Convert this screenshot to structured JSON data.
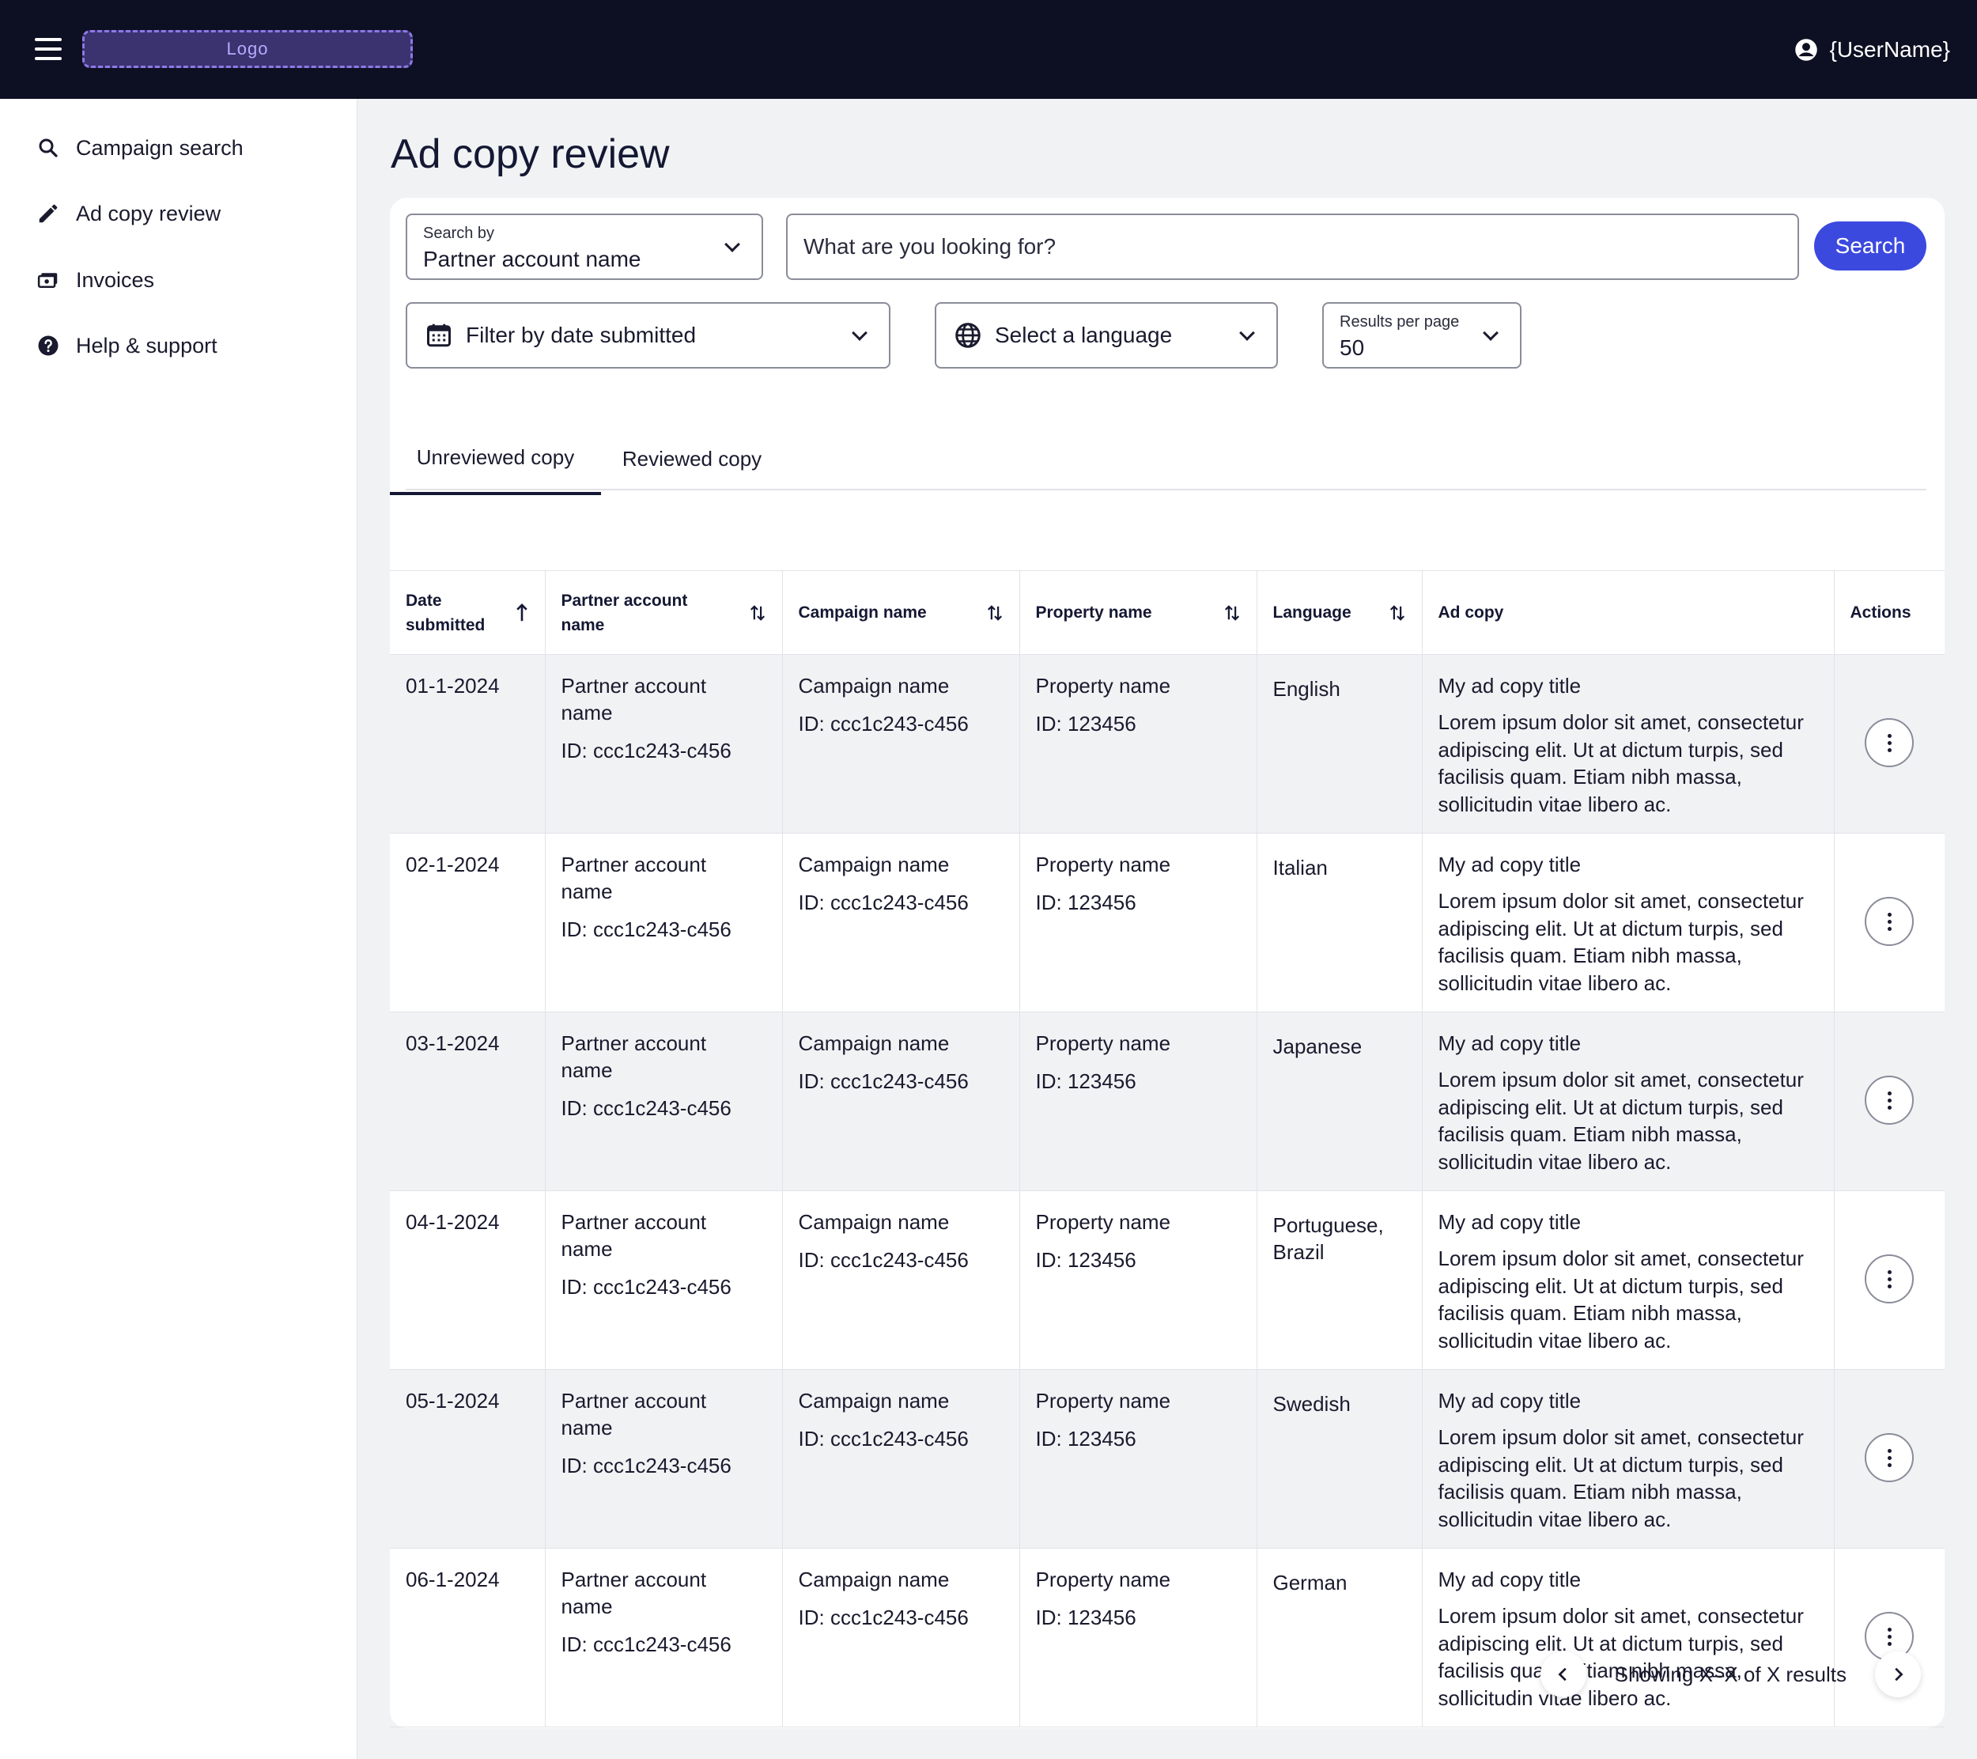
{
  "header": {
    "logo_text": "Logo",
    "user_name": "{UserName}"
  },
  "sidebar": {
    "items": [
      {
        "label": "Campaign search",
        "icon": "search-icon"
      },
      {
        "label": "Ad copy review",
        "icon": "pencil-icon"
      },
      {
        "label": "Invoices",
        "icon": "invoice-icon"
      },
      {
        "label": "Help & support",
        "icon": "help-icon"
      }
    ]
  },
  "page": {
    "title": "Ad copy review"
  },
  "filters": {
    "search_by_label": "Search by",
    "search_by_value": "Partner account name",
    "search_placeholder": "What are you looking for?",
    "search_button": "Search",
    "date_filter": "Filter by date submitted",
    "language_filter": "Select a language",
    "results_label": "Results per page",
    "results_value": "50"
  },
  "tabs": [
    {
      "label": "Unreviewed copy",
      "active": true
    },
    {
      "label": "Reviewed copy",
      "active": false
    }
  ],
  "table": {
    "headers": {
      "date": "Date submitted",
      "partner": "Partner account name",
      "campaign": "Campaign name",
      "property": "Property name",
      "language": "Language",
      "adcopy": "Ad copy",
      "actions": "Actions"
    },
    "rows": [
      {
        "date": "01-1-2024",
        "partner": "Partner account name",
        "partner_id": "ID: ccc1c243-c456",
        "campaign": "Campaign name",
        "campaign_id": "ID: ccc1c243-c456",
        "property": "Property name",
        "property_id": "ID: 123456",
        "language": "English",
        "ad_title": "My ad copy title",
        "ad_body": "Lorem ipsum dolor sit amet, consectetur adipiscing elit. Ut at dictum turpis, sed facilisis quam. Etiam nibh massa, sollicitudin vitae libero ac."
      },
      {
        "date": "02-1-2024",
        "partner": "Partner account name",
        "partner_id": "ID: ccc1c243-c456",
        "campaign": "Campaign name",
        "campaign_id": "ID: ccc1c243-c456",
        "property": "Property name",
        "property_id": "ID: 123456",
        "language": "Italian",
        "ad_title": "My ad copy title",
        "ad_body": "Lorem ipsum dolor sit amet, consectetur adipiscing elit. Ut at dictum turpis, sed facilisis quam. Etiam nibh massa, sollicitudin vitae libero ac."
      },
      {
        "date": "03-1-2024",
        "partner": "Partner account name",
        "partner_id": "ID: ccc1c243-c456",
        "campaign": "Campaign name",
        "campaign_id": "ID: ccc1c243-c456",
        "property": "Property name",
        "property_id": "ID: 123456",
        "language": "Japanese",
        "ad_title": "My ad copy title",
        "ad_body": "Lorem ipsum dolor sit amet, consectetur adipiscing elit. Ut at dictum turpis, sed facilisis quam. Etiam nibh massa, sollicitudin vitae libero ac."
      },
      {
        "date": "04-1-2024",
        "partner": "Partner account name",
        "partner_id": "ID: ccc1c243-c456",
        "campaign": "Campaign name",
        "campaign_id": "ID: ccc1c243-c456",
        "property": "Property name",
        "property_id": "ID: 123456",
        "language": "Portuguese, Brazil",
        "ad_title": "My ad copy title",
        "ad_body": "Lorem ipsum dolor sit amet, consectetur adipiscing elit. Ut at dictum turpis, sed facilisis quam. Etiam nibh massa, sollicitudin vitae libero ac."
      },
      {
        "date": "05-1-2024",
        "partner": "Partner account name",
        "partner_id": "ID: ccc1c243-c456",
        "campaign": "Campaign name",
        "campaign_id": "ID: ccc1c243-c456",
        "property": "Property name",
        "property_id": "ID: 123456",
        "language": "Swedish",
        "ad_title": "My ad copy title",
        "ad_body": "Lorem ipsum dolor sit amet, consectetur adipiscing elit. Ut at dictum turpis, sed facilisis quam. Etiam nibh massa, sollicitudin vitae libero ac."
      },
      {
        "date": "06-1-2024",
        "partner": "Partner account name",
        "partner_id": "ID: ccc1c243-c456",
        "campaign": "Campaign name",
        "campaign_id": "ID: ccc1c243-c456",
        "property": "Property name",
        "property_id": "ID: 123456",
        "language": "German",
        "ad_title": "My ad copy title",
        "ad_body": "Lorem ipsum dolor sit amet, consectetur adipiscing elit. Ut at dictum turpis, sed facilisis quam. Etiam nibh massa, sollicitudin vitae libero ac."
      }
    ]
  },
  "pagination": {
    "text": "Showing X–X of X results"
  },
  "colors": {
    "topbar": "#0d1022",
    "accent": "#3b49df",
    "logo_border": "#8e78e6"
  }
}
